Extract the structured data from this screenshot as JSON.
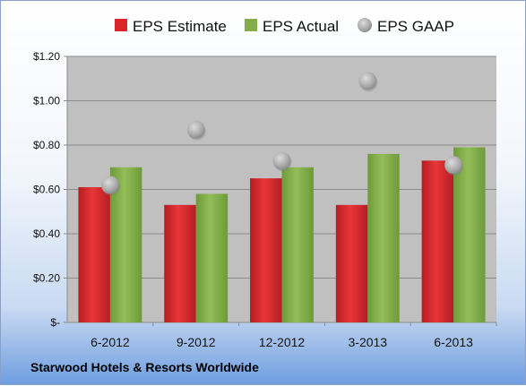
{
  "company_name": "Starwood Hotels & Resorts Worldwide",
  "chart_data": {
    "type": "bar",
    "categories": [
      "6-2012",
      "9-2012",
      "12-2012",
      "3-2013",
      "6-2013"
    ],
    "series": [
      {
        "name": "EPS Estimate",
        "type": "bar",
        "color": "#d9262b",
        "values": [
          0.61,
          0.53,
          0.65,
          0.53,
          0.73
        ]
      },
      {
        "name": "EPS Actual",
        "type": "bar",
        "color": "#83ad48",
        "values": [
          0.7,
          0.58,
          0.7,
          0.76,
          0.79
        ]
      },
      {
        "name": "EPS GAAP",
        "type": "scatter",
        "color": "#b8b8b8",
        "values": [
          0.62,
          0.87,
          0.73,
          1.09,
          0.71
        ]
      }
    ],
    "ylim": [
      0,
      1.2
    ],
    "yticks": [
      0,
      0.2,
      0.4,
      0.6,
      0.8,
      1.0,
      1.2
    ],
    "ytick_labels": [
      "$-",
      "$0.20",
      "$0.40",
      "$0.60",
      "$0.80",
      "$1.00",
      "$1.20"
    ],
    "legend_position": "top",
    "grid": true,
    "plot_background": "#c0c0c0"
  }
}
